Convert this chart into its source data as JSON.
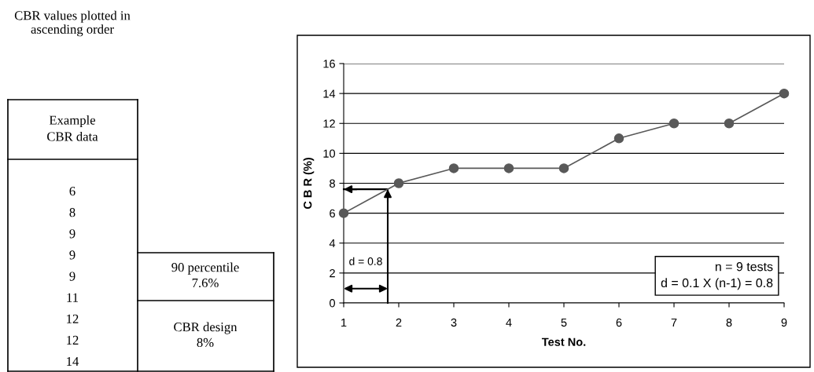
{
  "chart_data": [
    {
      "type": "other",
      "title": "CBR values plotted in\nascending order",
      "annotations": [
        "Example\nCBR data",
        "6",
        "8",
        "9",
        "9",
        "9",
        "11",
        "12",
        "12",
        "14",
        "90 percentile\n7.6%",
        "CBR design\n8%"
      ]
    },
    {
      "type": "line",
      "xlabel": "Test No.",
      "ylabel": "C B R (%)",
      "x": [
        1,
        2,
        3,
        4,
        5,
        6,
        7,
        8,
        9
      ],
      "series": [
        {
          "color": "#595959",
          "values": [
            6,
            8,
            9,
            9,
            9,
            11,
            12,
            12,
            14
          ]
        }
      ],
      "xlim": [
        1,
        9
      ],
      "xticks": [
        1,
        2,
        3,
        4,
        5,
        6,
        7,
        8,
        9
      ],
      "ylim": [
        0,
        16
      ],
      "yticks": [
        0,
        2,
        4,
        6,
        8,
        10,
        12,
        14,
        16
      ],
      "grid": "y",
      "marker": "circle",
      "line_style": "solid",
      "ref_lines": [
        {
          "axis": "x",
          "value": 1.8
        },
        {
          "axis": "y",
          "value": 7.6
        }
      ],
      "annotations": [
        "d = 0.8",
        "n = 9 tests\nd = 0.1 X (n-1) = 0.8"
      ]
    }
  ]
}
